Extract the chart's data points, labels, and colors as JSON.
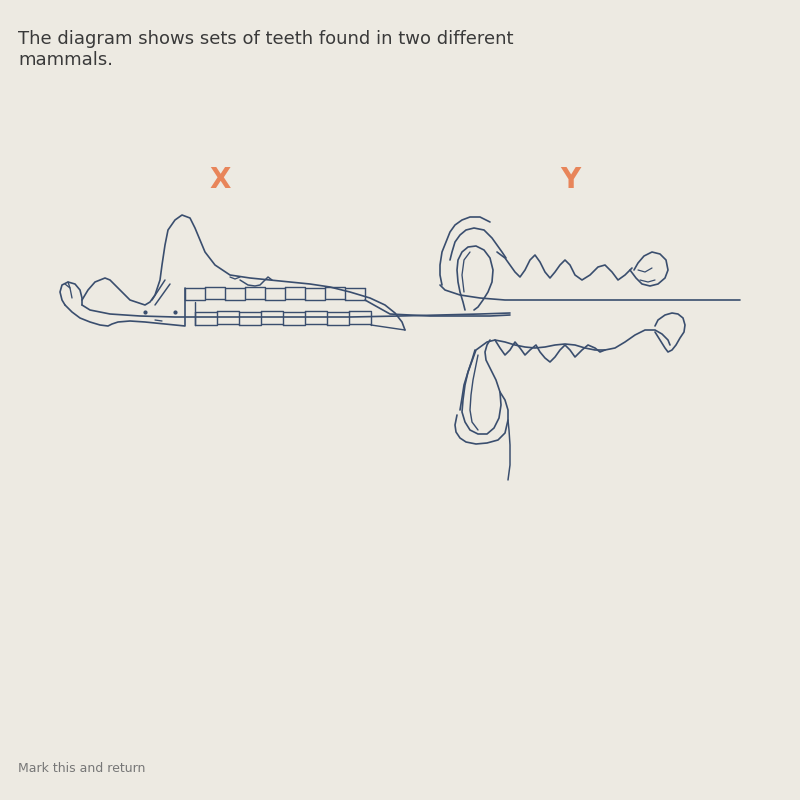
{
  "background_color": "#edeae2",
  "title_text": "The diagram shows sets of teeth found in two different\nmammals.",
  "title_color": "#3a3a3a",
  "title_fontsize": 13.0,
  "label_x": "X",
  "label_y": "Y",
  "label_color": "#e8855a",
  "label_fontsize": 20,
  "line_color": "#3a4e6e",
  "line_width": 1.2,
  "fig_width": 8.0,
  "fig_height": 8.0
}
